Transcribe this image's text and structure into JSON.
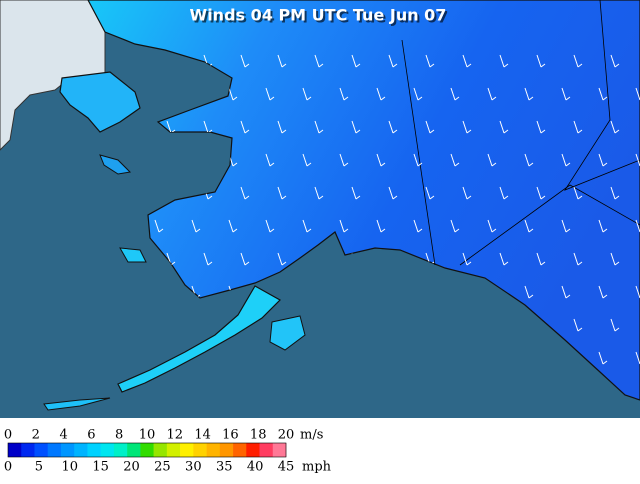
{
  "title": "Winds 04 PM UTC Tue Jun 07",
  "legend": {
    "ms_labels": [
      0,
      2,
      4,
      6,
      8,
      10,
      12,
      14,
      16,
      18,
      20
    ],
    "ms_unit": "m/s",
    "mph_labels": [
      0,
      5,
      10,
      15,
      20,
      25,
      30,
      35,
      40,
      45
    ],
    "mph_unit": "mph",
    "colors": [
      "#0000c8",
      "#0028f0",
      "#0050ff",
      "#0078ff",
      "#0096ff",
      "#00b4ff",
      "#00d2ff",
      "#00e6f0",
      "#00f0c8",
      "#00e678",
      "#32dc00",
      "#96e600",
      "#d2f000",
      "#fff000",
      "#ffd200",
      "#ffb400",
      "#ff9600",
      "#ff6400",
      "#ff1e00",
      "#ff3c60",
      "#ff7896"
    ]
  }
}
